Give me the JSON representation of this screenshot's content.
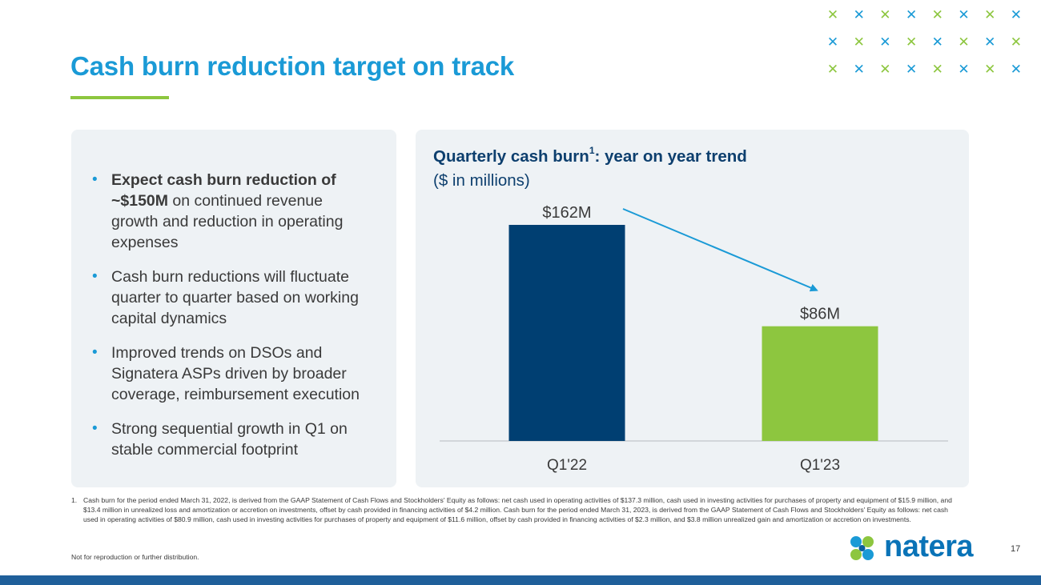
{
  "slide": {
    "title": "Cash burn reduction target on track",
    "page_number": "17",
    "disclaimer": "Not for reproduction or further distribution.",
    "logo_text": "natera",
    "colors": {
      "accent_blue": "#1a9ad6",
      "accent_green": "#8dc63f",
      "navy": "#003f72",
      "bar_green": "#8dc63f"
    }
  },
  "bullets": [
    {
      "bold": "Expect cash burn reduction of ~$150M",
      "text": " on continued revenue growth and reduction in operating expenses"
    },
    {
      "bold": "",
      "text": "Cash burn reductions will fluctuate quarter to quarter based on working capital dynamics"
    },
    {
      "bold": "",
      "text": "Improved trends on DSOs and Signatera ASPs driven by broader coverage, reimbursement execution"
    },
    {
      "bold": "",
      "text": "Strong sequential growth in Q1 on stable commercial footprint"
    }
  ],
  "chart_data": {
    "type": "bar",
    "title": "Quarterly cash burn",
    "title_superscript": "1",
    "title_suffix": ": year on year trend",
    "subtitle": "($ in millions)",
    "categories": [
      "Q1'22",
      "Q1'23"
    ],
    "values": [
      162,
      86
    ],
    "data_labels": [
      "$162M",
      "$86M"
    ],
    "bar_colors": [
      "#003f72",
      "#8dc63f"
    ],
    "ylim": [
      0,
      180
    ],
    "annotation": "trend arrow from Q1'22 bar to Q1'23 bar"
  },
  "footnote": {
    "number": "1.",
    "text": "Cash burn for the period ended March 31, 2022, is derived from the GAAP Statement of Cash Flows and Stockholders' Equity as follows: net cash used in operating activities of $137.3 million,  cash used in investing activities for purchases of property and equipment of $15.9 million, and $13.4 million in unrealized loss and amortization or accretion on investments, offset by cash provided in financing activities of $4.2 million. Cash burn for the period ended March 31, 2023, is derived from  the GAAP Statement of Cash Flows and Stockholders' Equity as follows: net cash used in operating activities of $80.9 million,  cash used in investing activities for purchases of property and equipment of $11.6 million, offset by cash provided in financing activities of $2.3 million, and $3.8 million unrealized gain and amortization or accretion on investments."
  }
}
